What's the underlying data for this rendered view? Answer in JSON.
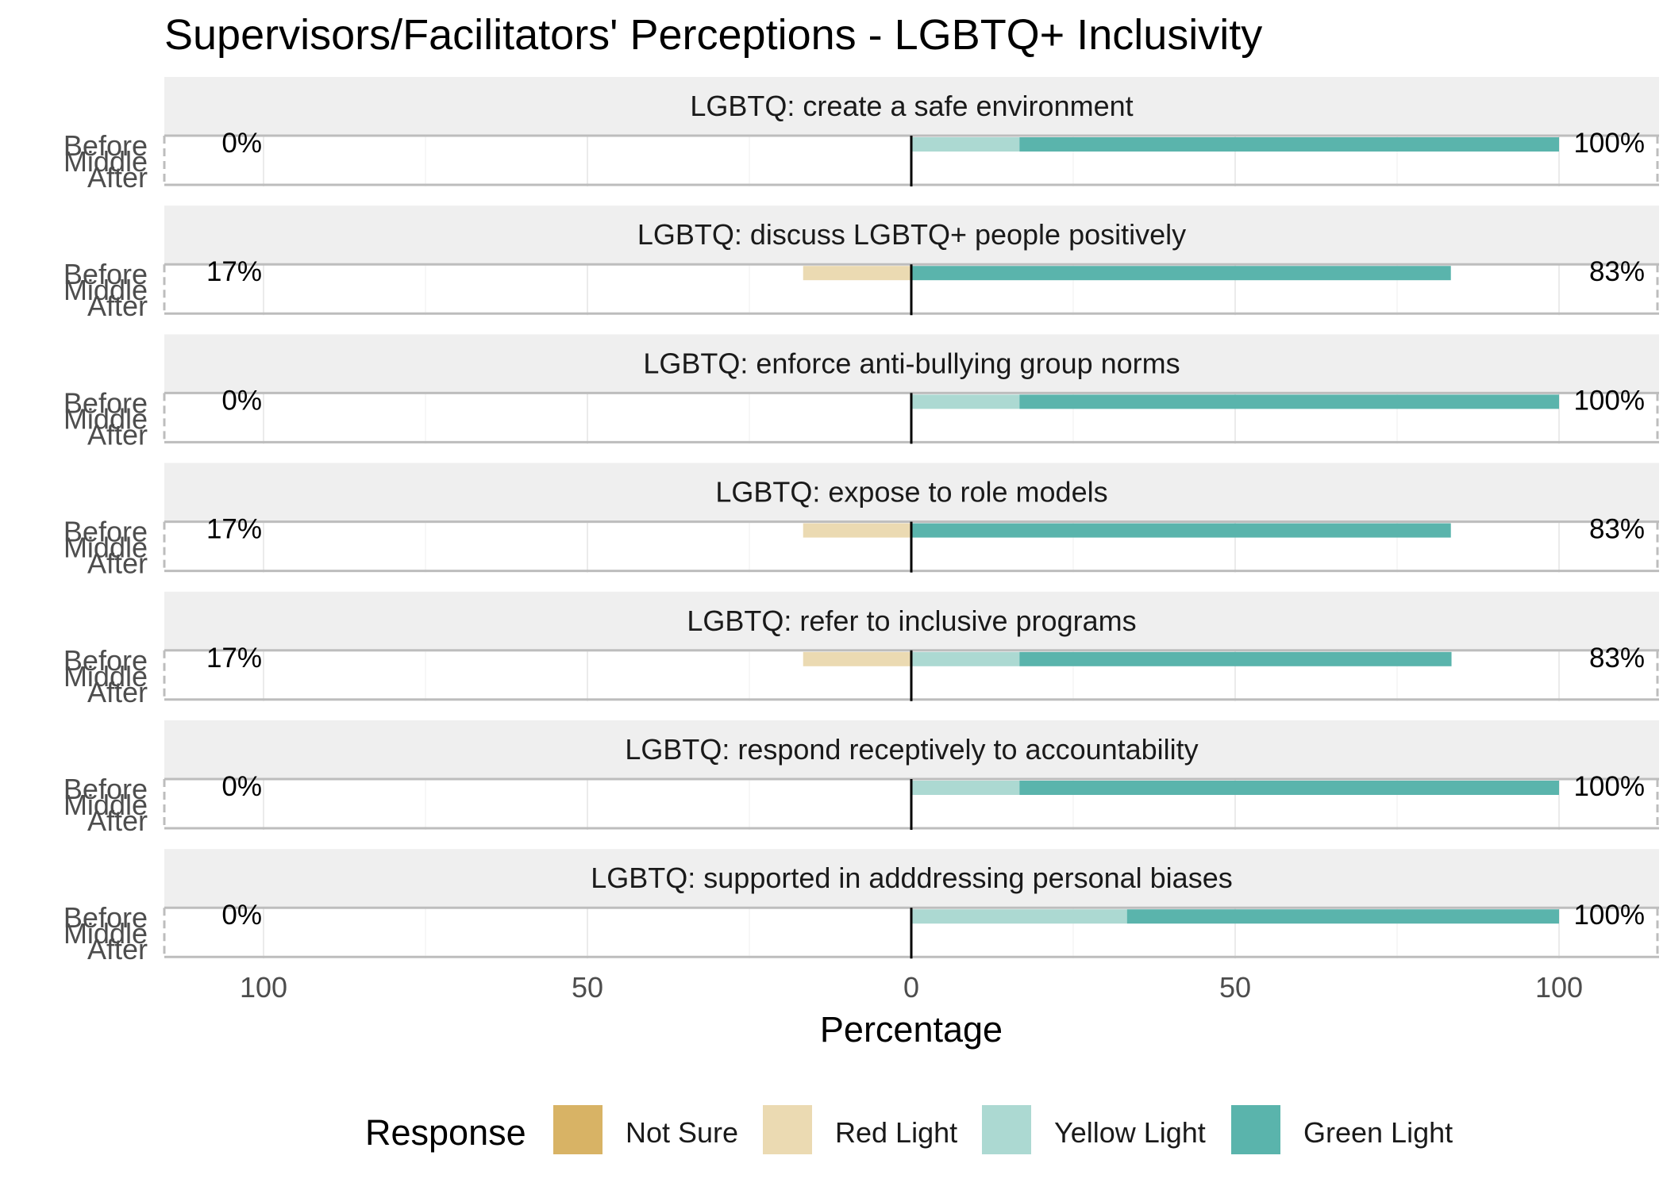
{
  "chart_data": {
    "type": "bar",
    "orientation": "horizontal-diverging",
    "title": "Supervisors/Facilitators' Perceptions - LGBTQ+ Inclusivity",
    "xlabel": "Percentage",
    "ylabel": "",
    "xlim": [
      -100,
      100
    ],
    "x_ticks": [
      {
        "value": -100,
        "label": "100"
      },
      {
        "value": -50,
        "label": "50"
      },
      {
        "value": 0,
        "label": "0"
      },
      {
        "value": 50,
        "label": "50"
      },
      {
        "value": 100,
        "label": "100"
      }
    ],
    "y_categories": [
      "Before",
      "Middle",
      "After"
    ],
    "legend": {
      "title": "Response",
      "position": "bottom",
      "entries": [
        {
          "name": "Not Sure",
          "color": "#d8b365"
        },
        {
          "name": "Red Light",
          "color": "#ebdab2"
        },
        {
          "name": "Yellow Light",
          "color": "#acd9d2"
        },
        {
          "name": "Green Light",
          "color": "#5ab4ac"
        }
      ]
    },
    "grid": true,
    "panels": [
      {
        "title": "LGBTQ: create a safe environment",
        "left_label": "0%",
        "right_label": "100%",
        "bars": [
          {
            "category": "Before",
            "Not Sure": 0,
            "Red Light": 0,
            "Yellow Light": 16.7,
            "Green Light": 83.3
          }
        ]
      },
      {
        "title": "LGBTQ: discuss LGBTQ+ people positively",
        "left_label": "17%",
        "right_label": "83%",
        "bars": [
          {
            "category": "Before",
            "Not Sure": 0,
            "Red Light": 16.7,
            "Yellow Light": 0,
            "Green Light": 83.3
          }
        ]
      },
      {
        "title": "LGBTQ: enforce anti-bullying group norms",
        "left_label": "0%",
        "right_label": "100%",
        "bars": [
          {
            "category": "Before",
            "Not Sure": 0,
            "Red Light": 0,
            "Yellow Light": 16.7,
            "Green Light": 83.3
          }
        ]
      },
      {
        "title": "LGBTQ: expose to role models",
        "left_label": "17%",
        "right_label": "83%",
        "bars": [
          {
            "category": "Before",
            "Not Sure": 0,
            "Red Light": 16.7,
            "Yellow Light": 0,
            "Green Light": 83.3
          }
        ]
      },
      {
        "title": "LGBTQ: refer to inclusive programs",
        "left_label": "17%",
        "right_label": "83%",
        "bars": [
          {
            "category": "Before",
            "Not Sure": 0,
            "Red Light": 16.7,
            "Yellow Light": 16.7,
            "Green Light": 66.7
          }
        ]
      },
      {
        "title": "LGBTQ: respond receptively to accountability",
        "left_label": "0%",
        "right_label": "100%",
        "bars": [
          {
            "category": "Before",
            "Not Sure": 0,
            "Red Light": 0,
            "Yellow Light": 16.7,
            "Green Light": 83.3
          }
        ]
      },
      {
        "title": "LGBTQ: supported in adddressing personal biases",
        "left_label": "0%",
        "right_label": "100%",
        "bars": [
          {
            "category": "Before",
            "Not Sure": 0,
            "Red Light": 0,
            "Yellow Light": 33.3,
            "Green Light": 66.7
          }
        ]
      }
    ]
  }
}
